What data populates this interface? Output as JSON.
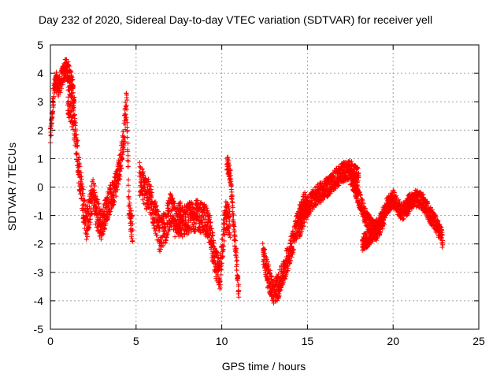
{
  "chart_data": {
    "type": "scatter",
    "title": "Day 232 of 2020, Sidereal Day-to-day VTEC variation (SDTVAR) for receiver yell",
    "xlabel": "GPS time / hours",
    "ylabel": "SDTVAR / TECUs",
    "xlim": [
      0,
      25
    ],
    "ylim": [
      -5,
      5
    ],
    "xticks": [
      0,
      5,
      10,
      15,
      20,
      25
    ],
    "yticks": [
      -5,
      -4,
      -3,
      -2,
      -1,
      0,
      1,
      2,
      3,
      4,
      5
    ],
    "grid": true,
    "marker": "+",
    "series": [
      {
        "name": "SDTVAR",
        "color": "#ff0000",
        "segments": [
          {
            "x0": 0.0,
            "x1": 1.4,
            "points": [
              [
                0.0,
                1.7
              ],
              [
                0.1,
                2.6
              ],
              [
                0.2,
                3.4
              ],
              [
                0.35,
                3.7
              ],
              [
                0.5,
                3.5
              ],
              [
                0.7,
                3.9
              ],
              [
                0.9,
                4.2
              ],
              [
                1.1,
                4.0
              ],
              [
                1.3,
                3.5
              ],
              [
                1.4,
                3.0
              ]
            ],
            "spread": 0.35
          },
          {
            "x0": 1.0,
            "x1": 3.0,
            "points": [
              [
                1.0,
                3.2
              ],
              [
                1.3,
                2.6
              ],
              [
                1.5,
                1.6
              ],
              [
                1.7,
                0.4
              ],
              [
                1.9,
                -0.5
              ],
              [
                2.1,
                -1.3
              ],
              [
                2.3,
                -0.8
              ],
              [
                2.5,
                -0.2
              ],
              [
                2.7,
                -0.9
              ],
              [
                3.0,
                -1.4
              ]
            ],
            "spread": 0.6
          },
          {
            "x0": 3.0,
            "x1": 4.8,
            "points": [
              [
                3.0,
                -1.3
              ],
              [
                3.3,
                -0.7
              ],
              [
                3.6,
                -0.3
              ],
              [
                3.9,
                0.3
              ],
              [
                4.1,
                0.9
              ],
              [
                4.3,
                1.9
              ],
              [
                4.45,
                3.0
              ],
              [
                4.6,
                -0.9
              ],
              [
                4.8,
                -1.5
              ]
            ],
            "spread": 0.5
          },
          {
            "x0": 5.2,
            "x1": 7.6,
            "points": [
              [
                5.2,
                0.3
              ],
              [
                5.5,
                -0.1
              ],
              [
                5.8,
                -0.4
              ],
              [
                6.1,
                -1.0
              ],
              [
                6.4,
                -1.7
              ],
              [
                6.7,
                -1.4
              ],
              [
                7.0,
                -0.8
              ],
              [
                7.3,
                -1.2
              ],
              [
                7.6,
                -1.0
              ]
            ],
            "spread": 0.6
          },
          {
            "x0": 7.5,
            "x1": 10.5,
            "points": [
              [
                7.5,
                -1.3
              ],
              [
                8.0,
                -1.1
              ],
              [
                8.5,
                -1.0
              ],
              [
                9.0,
                -1.1
              ],
              [
                9.3,
                -1.5
              ],
              [
                9.6,
                -2.6
              ],
              [
                9.9,
                -3.1
              ],
              [
                10.2,
                -1.0
              ],
              [
                10.5,
                -1.3
              ]
            ],
            "spread": 0.55
          },
          {
            "x0": 10.3,
            "x1": 11.0,
            "points": [
              [
                10.3,
                0.9
              ],
              [
                10.5,
                0.4
              ],
              [
                10.7,
                -1.4
              ],
              [
                10.85,
                -2.5
              ],
              [
                11.0,
                -3.8
              ]
            ],
            "spread": 0.3
          },
          {
            "x0": 12.4,
            "x1": 14.9,
            "points": [
              [
                12.4,
                -2.3
              ],
              [
                12.7,
                -3.1
              ],
              [
                13.0,
                -3.7
              ],
              [
                13.3,
                -3.5
              ],
              [
                13.6,
                -3.0
              ],
              [
                13.9,
                -2.4
              ],
              [
                14.2,
                -1.8
              ],
              [
                14.5,
                -1.1
              ],
              [
                14.9,
                -0.5
              ]
            ],
            "spread": 0.45
          },
          {
            "x0": 14.5,
            "x1": 18.0,
            "points": [
              [
                14.5,
                -1.5
              ],
              [
                15.0,
                -0.7
              ],
              [
                15.5,
                -0.3
              ],
              [
                16.0,
                -0.1
              ],
              [
                16.5,
                0.2
              ],
              [
                17.0,
                0.5
              ],
              [
                17.5,
                0.6
              ],
              [
                18.0,
                0.3
              ]
            ],
            "spread": 0.35
          },
          {
            "x0": 17.5,
            "x1": 19.5,
            "points": [
              [
                17.5,
                0.4
              ],
              [
                18.0,
                -0.4
              ],
              [
                18.5,
                -1.2
              ],
              [
                19.0,
                -1.6
              ],
              [
                19.5,
                -1.1
              ]
            ],
            "spread": 0.3
          },
          {
            "x0": 18.2,
            "x1": 21.0,
            "points": [
              [
                18.2,
                -2.0
              ],
              [
                18.7,
                -1.7
              ],
              [
                19.2,
                -1.3
              ],
              [
                19.6,
                -0.7
              ],
              [
                20.0,
                -0.4
              ],
              [
                20.5,
                -0.9
              ],
              [
                21.0,
                -0.6
              ]
            ],
            "spread": 0.3
          },
          {
            "x0": 20.8,
            "x1": 22.9,
            "points": [
              [
                20.8,
                -0.6
              ],
              [
                21.3,
                -0.4
              ],
              [
                21.7,
                -0.5
              ],
              [
                22.0,
                -0.8
              ],
              [
                22.4,
                -1.2
              ],
              [
                22.8,
                -1.7
              ],
              [
                22.9,
                -1.9
              ]
            ],
            "spread": 0.3
          }
        ]
      }
    ]
  }
}
